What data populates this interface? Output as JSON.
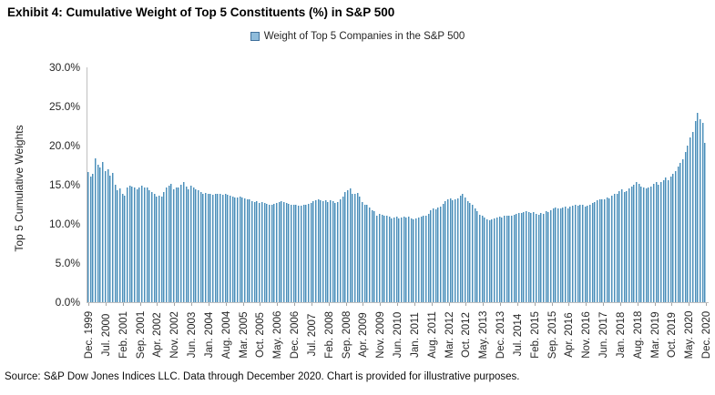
{
  "title": "Exhibit 4: Cumulative Weight of Top 5 Constituents (%) in S&P 500",
  "legend": {
    "label": "Weight of Top 5 Companies in the S&P 500",
    "swatch_fill": "#8fbcdb",
    "swatch_border": "#41719c"
  },
  "footer": "Source: S&P Dow Jones Indices LLC. Data through December 2020. Chart is provided for illustrative purposes.",
  "chart_data": {
    "type": "bar",
    "title": "Exhibit 4: Cumulative Weight of Top 5 Constituents (%) in S&P 500",
    "series_name": "Weight of Top 5 Companies in the S&P 500",
    "xlabel": "",
    "ylabel": "Top 5 Cumulative Weights",
    "ylim": [
      0,
      30
    ],
    "y_ticks": [
      "30.0%",
      "25.0%",
      "20.0%",
      "15.0%",
      "10.0%",
      "5.0%",
      "0.0%"
    ],
    "grid": false,
    "legend_position": "top-center",
    "x_frequency": "monthly",
    "x_start": "Dec. 1999",
    "x_end": "Dec. 2020",
    "x_tick_interval_months": 7,
    "x_tick_labels": [
      "Dec. 1999",
      "Jul. 2000",
      "Feb. 2001",
      "Sep. 2001",
      "Apr. 2002",
      "Nov. 2002",
      "Jun. 2003",
      "Jan. 2004",
      "Aug. 2004",
      "Mar. 2005",
      "Oct. 2005",
      "May. 2006",
      "Dec. 2006",
      "Jul. 2007",
      "Feb. 2008",
      "Sep. 2008",
      "Apr. 2009",
      "Nov. 2009",
      "Jun. 2010",
      "Jan. 2011",
      "Aug. 2011",
      "Mar. 2012",
      "Oct. 2012",
      "May. 2013",
      "Dec. 2013",
      "Jul. 2014",
      "Feb. 2015",
      "Sep. 2015",
      "Apr. 2016",
      "Nov. 2016",
      "Jun. 2017",
      "Jan. 2018",
      "Aug. 2018",
      "Mar. 2019",
      "Oct. 2019",
      "May. 2020",
      "Dec. 2020"
    ],
    "bar_fill": "#a8cde2",
    "bar_edge": "#4c8db8",
    "values": [
      16.6,
      16.1,
      16.4,
      18.4,
      17.6,
      17.2,
      17.9,
      16.7,
      17.0,
      16.2,
      16.5,
      15.0,
      14.3,
      14.5,
      13.9,
      13.6,
      14.6,
      14.9,
      14.8,
      14.7,
      14.4,
      14.7,
      14.9,
      14.7,
      14.6,
      14.3,
      14.1,
      13.8,
      13.5,
      13.6,
      13.5,
      14.1,
      14.7,
      14.9,
      15.1,
      14.4,
      14.6,
      14.7,
      15.0,
      15.3,
      14.8,
      14.4,
      14.9,
      14.6,
      14.4,
      14.3,
      14.1,
      13.9,
      14.0,
      13.9,
      13.8,
      13.7,
      13.8,
      13.9,
      13.8,
      13.7,
      13.8,
      13.7,
      13.6,
      13.5,
      13.4,
      13.4,
      13.5,
      13.4,
      13.3,
      13.2,
      13.1,
      12.9,
      12.8,
      12.9,
      12.7,
      12.8,
      12.7,
      12.6,
      12.5,
      12.5,
      12.6,
      12.7,
      12.8,
      12.9,
      12.8,
      12.7,
      12.6,
      12.5,
      12.4,
      12.4,
      12.3,
      12.3,
      12.4,
      12.5,
      12.6,
      12.7,
      12.9,
      13.0,
      13.1,
      13.0,
      12.9,
      13.0,
      12.8,
      13.0,
      12.9,
      12.7,
      12.8,
      13.2,
      13.5,
      14.1,
      14.3,
      14.5,
      13.9,
      13.8,
      14.0,
      13.5,
      12.8,
      12.5,
      12.4,
      12.1,
      11.8,
      11.6,
      11.1,
      11.3,
      11.2,
      11.1,
      11.0,
      10.9,
      10.7,
      10.8,
      10.9,
      10.7,
      10.8,
      10.9,
      10.8,
      10.9,
      10.7,
      10.6,
      10.7,
      10.8,
      10.9,
      11.0,
      11.1,
      11.3,
      11.7,
      12.0,
      11.9,
      12.1,
      12.2,
      12.6,
      12.9,
      13.2,
      13.3,
      13.0,
      13.1,
      13.3,
      13.6,
      13.8,
      13.4,
      12.9,
      12.7,
      12.4,
      12.0,
      11.6,
      11.2,
      11.0,
      10.8,
      10.6,
      10.5,
      10.6,
      10.7,
      10.8,
      10.9,
      10.8,
      11.0,
      11.0,
      11.1,
      11.1,
      11.2,
      11.3,
      11.4,
      11.4,
      11.5,
      11.6,
      11.5,
      11.4,
      11.5,
      11.3,
      11.2,
      11.4,
      11.3,
      11.6,
      11.5,
      11.7,
      12.0,
      12.1,
      12.0,
      12.0,
      12.1,
      12.2,
      12.0,
      12.2,
      12.3,
      12.4,
      12.3,
      12.5,
      12.4,
      12.2,
      12.3,
      12.5,
      12.7,
      12.8,
      13.0,
      13.2,
      13.1,
      13.2,
      13.4,
      13.3,
      13.6,
      13.8,
      13.9,
      14.2,
      14.4,
      14.1,
      14.2,
      14.5,
      14.8,
      15.0,
      15.3,
      15.1,
      14.8,
      14.7,
      14.5,
      14.6,
      14.8,
      15.1,
      15.3,
      15.0,
      15.4,
      15.6,
      15.9,
      15.6,
      16.0,
      16.4,
      16.7,
      17.3,
      17.8,
      18.3,
      19.2,
      20.0,
      21.0,
      21.8,
      23.1,
      24.2,
      23.4,
      22.9,
      20.3
    ]
  }
}
